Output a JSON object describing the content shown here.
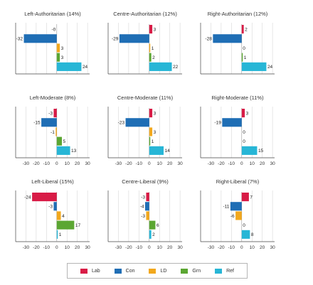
{
  "chart_data": [
    {
      "type": "bar",
      "orientation": "horizontal",
      "title": "Left-Authoritarian (14%)",
      "series": [
        {
          "name": "Lab",
          "value": 0
        },
        {
          "name": "Con",
          "value": -32
        },
        {
          "name": "LD",
          "value": 3
        },
        {
          "name": "Grn",
          "value": 3
        },
        {
          "name": "Ref",
          "value": 24
        }
      ],
      "xlim": [
        -40,
        32
      ],
      "xticks": [
        -30,
        -20,
        -10,
        0,
        10,
        20,
        30
      ],
      "show_xticks": false
    },
    {
      "type": "bar",
      "orientation": "horizontal",
      "title": "Centre-Authoritarian (12%)",
      "series": [
        {
          "name": "Lab",
          "value": 3
        },
        {
          "name": "Con",
          "value": -29
        },
        {
          "name": "LD",
          "value": 1
        },
        {
          "name": "Grn",
          "value": 2
        },
        {
          "name": "Ref",
          "value": 22
        }
      ],
      "xlim": [
        -40,
        32
      ],
      "xticks": [
        -30,
        -20,
        -10,
        0,
        10,
        20,
        30
      ],
      "show_xticks": false
    },
    {
      "type": "bar",
      "orientation": "horizontal",
      "title": "Right-Authoritarian (12%)",
      "series": [
        {
          "name": "Lab",
          "value": 2
        },
        {
          "name": "Con",
          "value": -28
        },
        {
          "name": "LD",
          "value": 0
        },
        {
          "name": "Grn",
          "value": 1
        },
        {
          "name": "Ref",
          "value": 24
        }
      ],
      "xlim": [
        -40,
        32
      ],
      "xticks": [
        -30,
        -20,
        -10,
        0,
        10,
        20,
        30
      ],
      "show_xticks": false
    },
    {
      "type": "bar",
      "orientation": "horizontal",
      "title": "Left-Moderate (8%)",
      "series": [
        {
          "name": "Lab",
          "value": -3
        },
        {
          "name": "Con",
          "value": -15
        },
        {
          "name": "LD",
          "value": -1
        },
        {
          "name": "Grn",
          "value": 5
        },
        {
          "name": "Ref",
          "value": 13
        }
      ],
      "xlim": [
        -40,
        32
      ],
      "xticks": [
        -30,
        -20,
        -10,
        0,
        10,
        20,
        30
      ],
      "show_xticks": true
    },
    {
      "type": "bar",
      "orientation": "horizontal",
      "title": "Centre-Moderate (11%)",
      "series": [
        {
          "name": "Lab",
          "value": 3
        },
        {
          "name": "Con",
          "value": -23
        },
        {
          "name": "LD",
          "value": 3
        },
        {
          "name": "Grn",
          "value": 1
        },
        {
          "name": "Ref",
          "value": 14
        }
      ],
      "xlim": [
        -40,
        32
      ],
      "xticks": [
        -30,
        -20,
        -10,
        0,
        10,
        20,
        30
      ],
      "show_xticks": true
    },
    {
      "type": "bar",
      "orientation": "horizontal",
      "title": "Right-Moderate (11%)",
      "series": [
        {
          "name": "Lab",
          "value": 3
        },
        {
          "name": "Con",
          "value": -19
        },
        {
          "name": "LD",
          "value": 0
        },
        {
          "name": "Grn",
          "value": 0
        },
        {
          "name": "Ref",
          "value": 15
        }
      ],
      "xlim": [
        -40,
        32
      ],
      "xticks": [
        -30,
        -20,
        -10,
        0,
        10,
        20,
        30
      ],
      "show_xticks": true
    },
    {
      "type": "bar",
      "orientation": "horizontal",
      "title": "Left-Liberal (15%)",
      "series": [
        {
          "name": "Lab",
          "value": -24
        },
        {
          "name": "Con",
          "value": -3
        },
        {
          "name": "LD",
          "value": 4
        },
        {
          "name": "Grn",
          "value": 17
        },
        {
          "name": "Ref",
          "value": 1
        }
      ],
      "xlim": [
        -40,
        32
      ],
      "xticks": [
        -30,
        -20,
        -10,
        0,
        10,
        20,
        30
      ],
      "show_xticks": true
    },
    {
      "type": "bar",
      "orientation": "horizontal",
      "title": "Centre-Liberal (9%)",
      "series": [
        {
          "name": "Lab",
          "value": -3
        },
        {
          "name": "Con",
          "value": -4
        },
        {
          "name": "LD",
          "value": -3
        },
        {
          "name": "Grn",
          "value": 6
        },
        {
          "name": "Ref",
          "value": 2
        }
      ],
      "xlim": [
        -40,
        32
      ],
      "xticks": [
        -30,
        -20,
        -10,
        0,
        10,
        20,
        30
      ],
      "show_xticks": true
    },
    {
      "type": "bar",
      "orientation": "horizontal",
      "title": "Right-Liberal (7%)",
      "series": [
        {
          "name": "Lab",
          "value": 7
        },
        {
          "name": "Con",
          "value": -11
        },
        {
          "name": "LD",
          "value": -6
        },
        {
          "name": "Grn",
          "value": 0
        },
        {
          "name": "Ref",
          "value": 8
        }
      ],
      "xlim": [
        -40,
        32
      ],
      "xticks": [
        -30,
        -20,
        -10,
        0,
        10,
        20,
        30
      ],
      "show_xticks": true
    }
  ],
  "legend": {
    "items": [
      {
        "name": "Lab",
        "color": "#d81b46"
      },
      {
        "name": "Con",
        "color": "#1f6eb5"
      },
      {
        "name": "LD",
        "color": "#f2a81d"
      },
      {
        "name": "Grn",
        "color": "#5ba632"
      },
      {
        "name": "Ref",
        "color": "#27b6d6"
      }
    ]
  }
}
